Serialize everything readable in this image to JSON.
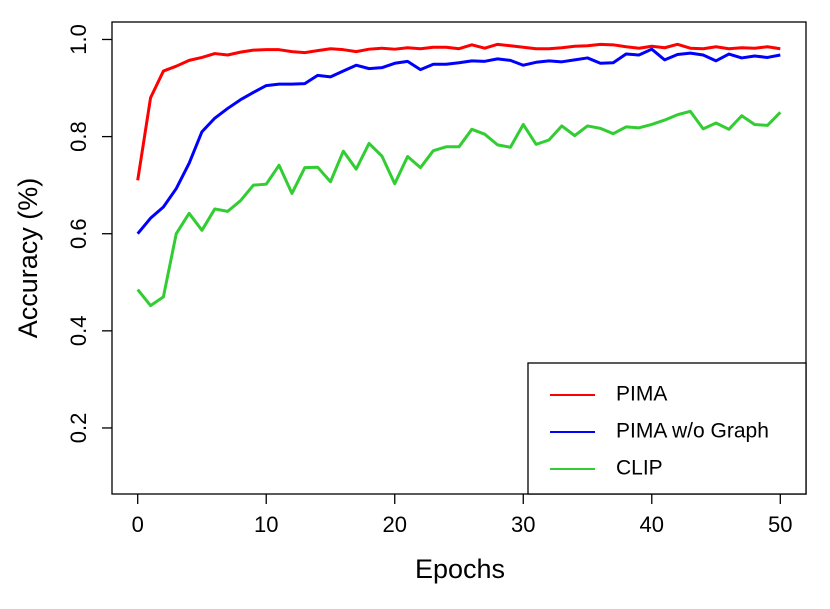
{
  "chart_data": {
    "type": "line",
    "x_label": "Epochs",
    "y_label": "Accuracy (%)",
    "x": [
      0,
      1,
      2,
      3,
      4,
      5,
      6,
      7,
      8,
      9,
      10,
      11,
      12,
      13,
      14,
      15,
      16,
      17,
      18,
      19,
      20,
      21,
      22,
      23,
      24,
      25,
      26,
      27,
      28,
      29,
      30,
      31,
      32,
      33,
      34,
      35,
      36,
      37,
      38,
      39,
      40,
      41,
      42,
      43,
      44,
      45,
      46,
      47,
      48,
      49,
      50
    ],
    "series": [
      {
        "name": "PIMA",
        "color": "#ff0000",
        "values": [
          0.71,
          0.88,
          0.935,
          0.945,
          0.957,
          0.963,
          0.971,
          0.968,
          0.974,
          0.978,
          0.979,
          0.979,
          0.975,
          0.973,
          0.977,
          0.981,
          0.979,
          0.975,
          0.98,
          0.982,
          0.98,
          0.983,
          0.981,
          0.984,
          0.984,
          0.981,
          0.989,
          0.982,
          0.99,
          0.987,
          0.984,
          0.981,
          0.981,
          0.983,
          0.986,
          0.987,
          0.99,
          0.989,
          0.985,
          0.982,
          0.986,
          0.983,
          0.99,
          0.982,
          0.981,
          0.985,
          0.981,
          0.983,
          0.982,
          0.985,
          0.981
        ]
      },
      {
        "name": "PIMA w/o Graph",
        "color": "#0000ff",
        "values": [
          0.6,
          0.632,
          0.655,
          0.693,
          0.745,
          0.81,
          0.838,
          0.858,
          0.876,
          0.891,
          0.905,
          0.908,
          0.908,
          0.909,
          0.926,
          0.923,
          0.935,
          0.947,
          0.94,
          0.942,
          0.951,
          0.955,
          0.938,
          0.949,
          0.949,
          0.952,
          0.956,
          0.955,
          0.96,
          0.957,
          0.947,
          0.953,
          0.956,
          0.954,
          0.958,
          0.962,
          0.951,
          0.952,
          0.97,
          0.968,
          0.98,
          0.958,
          0.969,
          0.972,
          0.968,
          0.956,
          0.97,
          0.962,
          0.966,
          0.963,
          0.968
        ]
      },
      {
        "name": "CLIP",
        "color": "#32cd32",
        "values": [
          0.485,
          0.452,
          0.47,
          0.6,
          0.642,
          0.607,
          0.651,
          0.646,
          0.668,
          0.7,
          0.702,
          0.741,
          0.683,
          0.736,
          0.737,
          0.707,
          0.77,
          0.733,
          0.786,
          0.76,
          0.703,
          0.759,
          0.736,
          0.771,
          0.779,
          0.779,
          0.815,
          0.805,
          0.783,
          0.778,
          0.825,
          0.784,
          0.793,
          0.822,
          0.802,
          0.822,
          0.817,
          0.806,
          0.82,
          0.818,
          0.825,
          0.834,
          0.845,
          0.852,
          0.816,
          0.828,
          0.815,
          0.843,
          0.825,
          0.823,
          0.85
        ]
      }
    ],
    "xlim": [
      -2,
      52
    ],
    "xticks": [
      0,
      10,
      20,
      30,
      40,
      50
    ],
    "ylim": [
      0.064,
      1.036
    ],
    "yticks": [
      0.2,
      0.4,
      0.6,
      0.8,
      {
        "value": 1,
        "label": "1.0"
      }
    ],
    "legend": "bottomright"
  }
}
